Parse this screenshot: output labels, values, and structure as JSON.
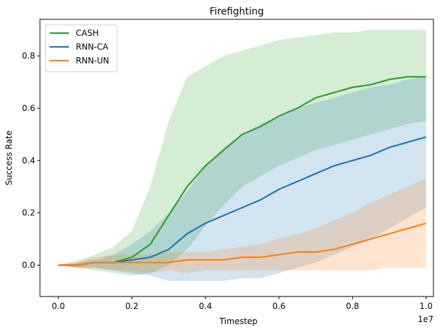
{
  "chart_data": {
    "type": "line",
    "title": "Firefighting",
    "xlabel": "Timestep",
    "ylabel": "Success Rate",
    "x_offset_label": "1e7",
    "xlim": [
      -0.05,
      1.02
    ],
    "ylim": [
      -0.12,
      0.94
    ],
    "xticks": [
      0.0,
      0.2,
      0.4,
      0.6,
      0.8,
      1.0
    ],
    "xtick_labels": [
      "0.0",
      "0.2",
      "0.4",
      "0.6",
      "0.8",
      "1.0"
    ],
    "yticks": [
      0.0,
      0.2,
      0.4,
      0.6,
      0.8
    ],
    "ytick_labels": [
      "0.0",
      "0.2",
      "0.4",
      "0.6",
      "0.8"
    ],
    "grid": false,
    "legend": "top-left",
    "x": [
      0.0,
      0.05,
      0.1,
      0.15,
      0.2,
      0.25,
      0.3,
      0.35,
      0.4,
      0.45,
      0.5,
      0.55,
      0.6,
      0.65,
      0.7,
      0.75,
      0.8,
      0.85,
      0.9,
      0.95,
      1.0
    ],
    "series": [
      {
        "name": "CASH",
        "color": "#2ca02c",
        "mean": [
          0.0,
          0.0,
          0.01,
          0.01,
          0.03,
          0.08,
          0.19,
          0.3,
          0.38,
          0.44,
          0.5,
          0.53,
          0.57,
          0.6,
          0.64,
          0.66,
          0.68,
          0.69,
          0.71,
          0.72,
          0.72
        ],
        "lower": [
          0.0,
          -0.01,
          -0.02,
          -0.03,
          -0.04,
          -0.03,
          0.0,
          0.06,
          0.15,
          0.23,
          0.3,
          0.34,
          0.38,
          0.41,
          0.44,
          0.46,
          0.48,
          0.5,
          0.52,
          0.54,
          0.55
        ],
        "upper": [
          0.0,
          0.01,
          0.04,
          0.07,
          0.13,
          0.3,
          0.55,
          0.72,
          0.76,
          0.8,
          0.82,
          0.84,
          0.86,
          0.87,
          0.88,
          0.89,
          0.89,
          0.9,
          0.9,
          0.9,
          0.9
        ]
      },
      {
        "name": "RNN-CA",
        "color": "#1f77b4",
        "mean": [
          0.0,
          0.0,
          0.01,
          0.01,
          0.02,
          0.03,
          0.06,
          0.12,
          0.16,
          0.19,
          0.22,
          0.25,
          0.29,
          0.32,
          0.35,
          0.38,
          0.4,
          0.42,
          0.45,
          0.47,
          0.49
        ],
        "lower": [
          0.0,
          -0.01,
          -0.01,
          -0.02,
          -0.03,
          -0.04,
          -0.06,
          -0.06,
          -0.06,
          -0.06,
          -0.05,
          -0.05,
          -0.03,
          -0.01,
          0.01,
          0.04,
          0.07,
          0.1,
          0.14,
          0.18,
          0.22
        ],
        "upper": [
          0.0,
          0.01,
          0.02,
          0.04,
          0.08,
          0.13,
          0.2,
          0.28,
          0.38,
          0.45,
          0.5,
          0.54,
          0.57,
          0.6,
          0.62,
          0.64,
          0.66,
          0.68,
          0.69,
          0.71,
          0.72
        ]
      },
      {
        "name": "RNN-UN",
        "color": "#ff7f0e",
        "mean": [
          0.0,
          0.0,
          0.01,
          0.01,
          0.01,
          0.01,
          0.01,
          0.02,
          0.02,
          0.02,
          0.03,
          0.03,
          0.04,
          0.05,
          0.05,
          0.06,
          0.08,
          0.1,
          0.12,
          0.14,
          0.16
        ],
        "lower": [
          0.0,
          -0.01,
          -0.01,
          -0.02,
          -0.02,
          -0.03,
          -0.02,
          -0.03,
          -0.02,
          -0.02,
          -0.02,
          -0.02,
          -0.02,
          -0.02,
          -0.02,
          -0.02,
          -0.02,
          -0.02,
          -0.01,
          -0.01,
          -0.01
        ],
        "upper": [
          0.0,
          0.02,
          0.03,
          0.04,
          0.04,
          0.04,
          0.05,
          0.05,
          0.05,
          0.06,
          0.07,
          0.08,
          0.1,
          0.12,
          0.14,
          0.17,
          0.2,
          0.24,
          0.27,
          0.3,
          0.33
        ]
      }
    ]
  }
}
